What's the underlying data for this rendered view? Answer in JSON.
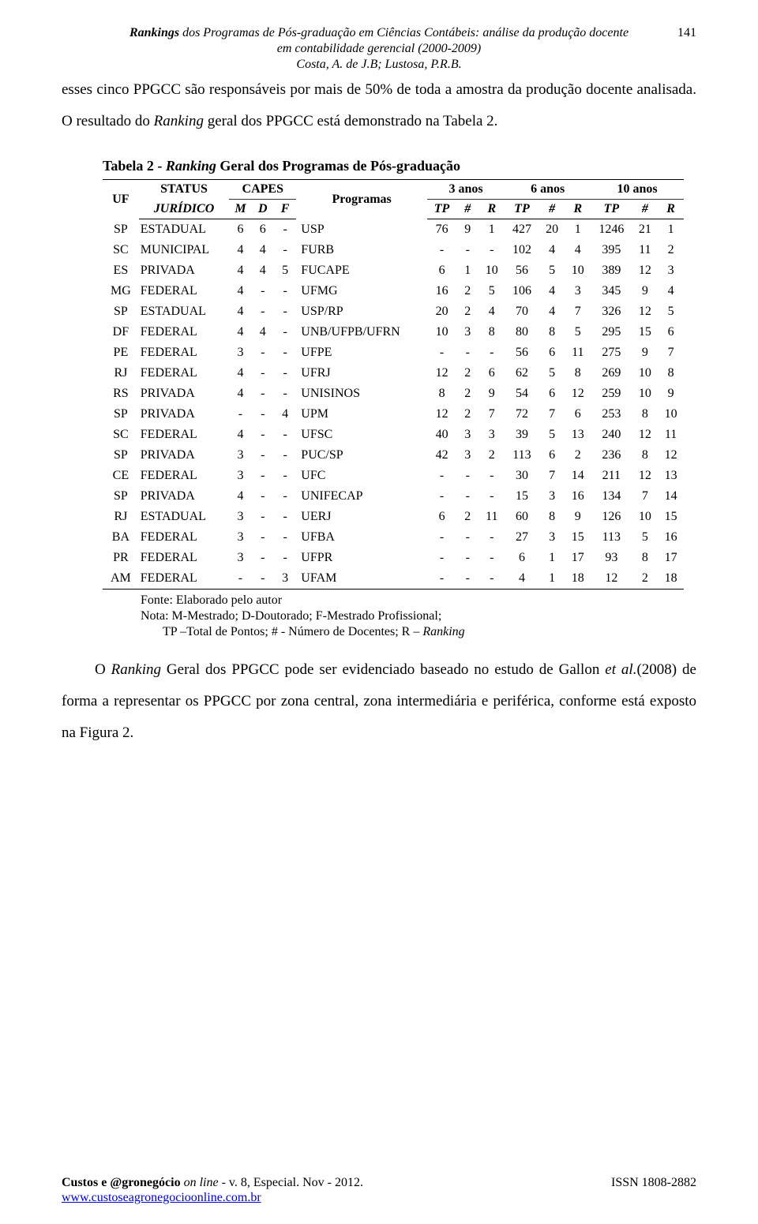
{
  "header": {
    "title_line1_prefix": "Rankings",
    "title_line1_rest": " dos Programas de Pós-graduação em Ciências Contábeis: análise da produção docente",
    "title_line2": "em contabilidade gerencial (2000-2009)",
    "title_line3": "Costa, A. de J.B; Lustosa, P.R.B.",
    "page_number": "141"
  },
  "intro": {
    "sentence1": "esses cinco PPGCC são responsáveis por mais de 50% de toda a amostra da produção docente analisada. O resultado do ",
    "sentence1_italic": "Ranking",
    "sentence1_rest": " geral dos PPGCC está demonstrado na Tabela 2."
  },
  "table": {
    "caption_prefix": "Tabela 2 - ",
    "caption_italic": "Ranking",
    "caption_rest": " Geral dos Programas de Pós-graduação",
    "head": {
      "uf": "UF",
      "status": "STATUS",
      "juridico": "JURÍDICO",
      "capes": "CAPES",
      "m": "M",
      "d": "D",
      "f": "F",
      "programas": "Programas",
      "y3": "3 anos",
      "y6": "6 anos",
      "y10": "10 anos",
      "tp": "TP",
      "hash": "#",
      "r": "R"
    },
    "rows": [
      {
        "uf": "SP",
        "status": "ESTADUAL",
        "m": "6",
        "d": "6",
        "f": "-",
        "prog": "USP",
        "t3": "76",
        "n3": "9",
        "r3": "1",
        "t6": "427",
        "n6": "20",
        "r6": "1",
        "t10": "1246",
        "n10": "21",
        "r10": "1"
      },
      {
        "uf": "SC",
        "status": "MUNICIPAL",
        "m": "4",
        "d": "4",
        "f": "-",
        "prog": "FURB",
        "t3": "-",
        "n3": "-",
        "r3": "-",
        "t6": "102",
        "n6": "4",
        "r6": "4",
        "t10": "395",
        "n10": "11",
        "r10": "2"
      },
      {
        "uf": "ES",
        "status": "PRIVADA",
        "m": "4",
        "d": "4",
        "f": "5",
        "prog": "FUCAPE",
        "t3": "6",
        "n3": "1",
        "r3": "10",
        "t6": "56",
        "n6": "5",
        "r6": "10",
        "t10": "389",
        "n10": "12",
        "r10": "3"
      },
      {
        "uf": "MG",
        "status": "FEDERAL",
        "m": "4",
        "d": "-",
        "f": "-",
        "prog": "UFMG",
        "t3": "16",
        "n3": "2",
        "r3": "5",
        "t6": "106",
        "n6": "4",
        "r6": "3",
        "t10": "345",
        "n10": "9",
        "r10": "4"
      },
      {
        "uf": "SP",
        "status": "ESTADUAL",
        "m": "4",
        "d": "-",
        "f": "-",
        "prog": "USP/RP",
        "t3": "20",
        "n3": "2",
        "r3": "4",
        "t6": "70",
        "n6": "4",
        "r6": "7",
        "t10": "326",
        "n10": "12",
        "r10": "5"
      },
      {
        "uf": "DF",
        "status": "FEDERAL",
        "m": "4",
        "d": "4",
        "f": "-",
        "prog": "UNB/UFPB/UFRN",
        "t3": "10",
        "n3": "3",
        "r3": "8",
        "t6": "80",
        "n6": "8",
        "r6": "5",
        "t10": "295",
        "n10": "15",
        "r10": "6"
      },
      {
        "uf": "PE",
        "status": "FEDERAL",
        "m": "3",
        "d": "-",
        "f": "-",
        "prog": "UFPE",
        "t3": "-",
        "n3": "-",
        "r3": "-",
        "t6": "56",
        "n6": "6",
        "r6": "11",
        "t10": "275",
        "n10": "9",
        "r10": "7"
      },
      {
        "uf": "RJ",
        "status": "FEDERAL",
        "m": "4",
        "d": "-",
        "f": "-",
        "prog": "UFRJ",
        "t3": "12",
        "n3": "2",
        "r3": "6",
        "t6": "62",
        "n6": "5",
        "r6": "8",
        "t10": "269",
        "n10": "10",
        "r10": "8"
      },
      {
        "uf": "RS",
        "status": "PRIVADA",
        "m": "4",
        "d": "-",
        "f": "-",
        "prog": "UNISINOS",
        "t3": "8",
        "n3": "2",
        "r3": "9",
        "t6": "54",
        "n6": "6",
        "r6": "12",
        "t10": "259",
        "n10": "10",
        "r10": "9"
      },
      {
        "uf": "SP",
        "status": "PRIVADA",
        "m": "-",
        "d": "-",
        "f": "4",
        "prog": "UPM",
        "t3": "12",
        "n3": "2",
        "r3": "7",
        "t6": "72",
        "n6": "7",
        "r6": "6",
        "t10": "253",
        "n10": "8",
        "r10": "10"
      },
      {
        "uf": "SC",
        "status": "FEDERAL",
        "m": "4",
        "d": "-",
        "f": "-",
        "prog": "UFSC",
        "t3": "40",
        "n3": "3",
        "r3": "3",
        "t6": "39",
        "n6": "5",
        "r6": "13",
        "t10": "240",
        "n10": "12",
        "r10": "11"
      },
      {
        "uf": "SP",
        "status": "PRIVADA",
        "m": "3",
        "d": "-",
        "f": "-",
        "prog": "PUC/SP",
        "t3": "42",
        "n3": "3",
        "r3": "2",
        "t6": "113",
        "n6": "6",
        "r6": "2",
        "t10": "236",
        "n10": "8",
        "r10": "12"
      },
      {
        "uf": "CE",
        "status": "FEDERAL",
        "m": "3",
        "d": "-",
        "f": "-",
        "prog": "UFC",
        "t3": "-",
        "n3": "-",
        "r3": "-",
        "t6": "30",
        "n6": "7",
        "r6": "14",
        "t10": "211",
        "n10": "12",
        "r10": "13"
      },
      {
        "uf": "SP",
        "status": "PRIVADA",
        "m": "4",
        "d": "-",
        "f": "-",
        "prog": "UNIFECAP",
        "t3": "-",
        "n3": "-",
        "r3": "-",
        "t6": "15",
        "n6": "3",
        "r6": "16",
        "t10": "134",
        "n10": "7",
        "r10": "14"
      },
      {
        "uf": "RJ",
        "status": "ESTADUAL",
        "m": "3",
        "d": "-",
        "f": "-",
        "prog": "UERJ",
        "t3": "6",
        "n3": "2",
        "r3": "11",
        "t6": "60",
        "n6": "8",
        "r6": "9",
        "t10": "126",
        "n10": "10",
        "r10": "15"
      },
      {
        "uf": "BA",
        "status": "FEDERAL",
        "m": "3",
        "d": "-",
        "f": "-",
        "prog": "UFBA",
        "t3": "-",
        "n3": "-",
        "r3": "-",
        "t6": "27",
        "n6": "3",
        "r6": "15",
        "t10": "113",
        "n10": "5",
        "r10": "16"
      },
      {
        "uf": "PR",
        "status": "FEDERAL",
        "m": "3",
        "d": "-",
        "f": "-",
        "prog": "UFPR",
        "t3": "-",
        "n3": "-",
        "r3": "-",
        "t6": "6",
        "n6": "1",
        "r6": "17",
        "t10": "93",
        "n10": "8",
        "r10": "17"
      },
      {
        "uf": "AM",
        "status": "FEDERAL",
        "m": "-",
        "d": "-",
        "f": "3",
        "prog": "UFAM",
        "t3": "-",
        "n3": "-",
        "r3": "-",
        "t6": "4",
        "n6": "1",
        "r6": "18",
        "t10": "12",
        "n10": "2",
        "r10": "18"
      }
    ],
    "note_line1": "Fonte: Elaborado pelo autor",
    "note_line2": "Nota: M-Mestrado; D-Doutorado; F-Mestrado Profissional;",
    "note_line3_prefix": "TP –Total de Pontos; # - Número de Docentes; R – ",
    "note_line3_italic": "Ranking"
  },
  "para2": {
    "prefix": "O ",
    "italic1": "Ranking",
    "mid1": " Geral dos PPGCC pode ser evidenciado baseado no estudo de Gallon ",
    "italic2": "et al.",
    "rest": "(2008) de forma a representar os PPGCC por zona central, zona intermediária e periférica, conforme está exposto na Figura 2."
  },
  "footer": {
    "left_bold": "Custos e @gronegócio",
    "left_italic": " on line",
    "left_rest": " - v. 8, Especial. Nov - 2012.",
    "link": "www.custoseagronegocioonline.com.br",
    "issn": "ISSN 1808-2882"
  }
}
